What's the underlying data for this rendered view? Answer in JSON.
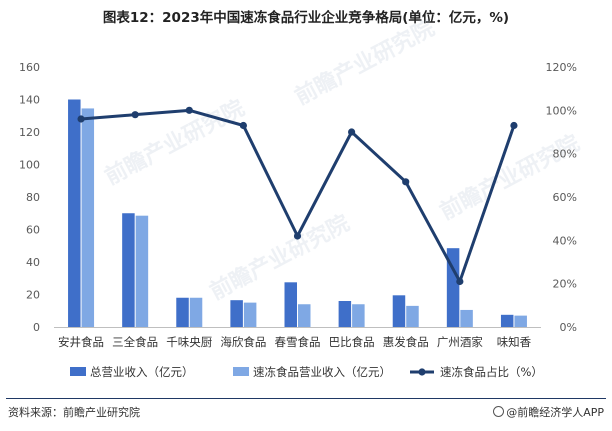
{
  "title": "图表12：2023年中国速冻食品行业企业竞争格局(单位：亿元，%)",
  "source": "资料来源：前瞻产业研究院",
  "brand": "@前瞻经济学人APP",
  "watermark": "前瞻产业研究院",
  "colors": {
    "bar1": "#3f6fc9",
    "bar2": "#7fa8e4",
    "line": "#1f3e6e",
    "axis": "#bfbfbf",
    "rule": "#1f3864"
  },
  "chart_data": {
    "type": "bar",
    "categories": [
      "安井食品",
      "三全食品",
      "千味央厨",
      "海欣食品",
      "春雪食品",
      "巴比食品",
      "惠发食品",
      "广州酒家",
      "味知香"
    ],
    "series": [
      {
        "name": "总营业收入（亿元）",
        "type": "bar",
        "axis": "left",
        "values": [
          140,
          70,
          18,
          16.5,
          27.5,
          16,
          19.5,
          48.5,
          7.5
        ]
      },
      {
        "name": "速冻食品营业收入（亿元）",
        "type": "bar",
        "axis": "left",
        "values": [
          134.5,
          68.5,
          18,
          15,
          14,
          14,
          13,
          10.5,
          7
        ]
      },
      {
        "name": "速冻食品占比（%）",
        "type": "line",
        "axis": "right",
        "values": [
          96,
          98,
          100,
          93,
          42,
          90,
          67,
          21,
          93
        ]
      }
    ],
    "ylim": [
      0,
      160
    ],
    "yticks": [
      "0",
      "20",
      "40",
      "60",
      "80",
      "100",
      "120",
      "140",
      "160"
    ],
    "y2lim": [
      0,
      120
    ],
    "y2ticks": [
      "0%",
      "20%",
      "40%",
      "60%",
      "80%",
      "100%",
      "120%"
    ],
    "grid": false,
    "legend_position": "bottom"
  }
}
